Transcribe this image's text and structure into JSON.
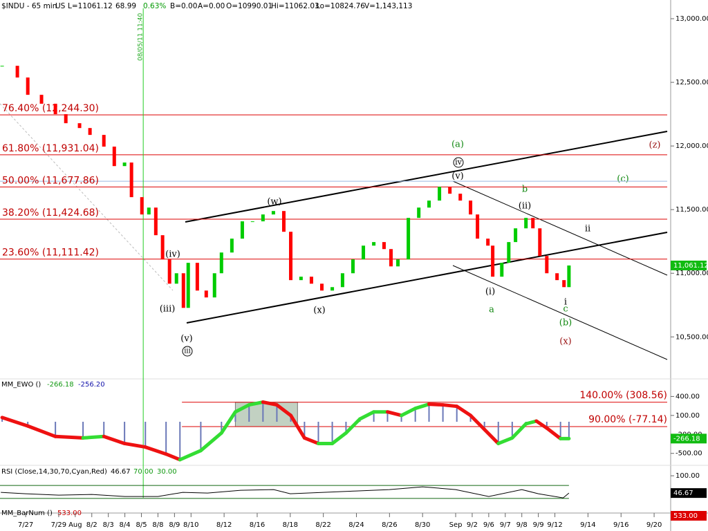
{
  "header": {
    "symbol": "$INDU - 65 min",
    "market": "US",
    "last": "L=11061.12",
    "change": "68.99",
    "pct": "0.63%",
    "bid": "B=0.00",
    "ask": "A=0.00",
    "open": "O=10990.01",
    "high": "Hi=11062.03",
    "low": "Lo=10824.76",
    "volume": "V=1,143,113"
  },
  "chart_data": [
    {
      "type": "candlestick",
      "x": [
        -1.42,
        -0.5,
        0.13,
        0.96,
        1.8,
        2.43,
        3.26,
        3.89,
        4.73,
        5.36,
        5.98,
        6.4,
        7.03,
        7.45,
        7.87,
        8.28,
        8.7,
        9.12,
        9.54,
        9.83,
        10.38,
        10.92,
        11.42,
        11.84,
        12.47,
        13.1,
        13.72,
        14.35,
        14.98,
        15.61,
        16.03,
        16.65,
        17.28,
        17.91,
        18.54,
        19.16,
        19.79,
        20.42,
        21.05,
        21.67,
        22.09,
        22.51,
        23.14,
        23.77,
        24.39,
        25.02,
        25.65,
        26.28,
        26.9,
        27.32,
        27.95,
        28.24,
        28.79,
        29.21,
        29.62,
        30.25,
        30.67,
        31.09,
        31.51,
        32.13,
        32.55,
        32.85
      ],
      "values": [
        12630,
        12538,
        12402,
        12332,
        12250,
        12179,
        12141,
        12087,
        11995,
        11842,
        11870,
        11598,
        11462,
        11516,
        11299,
        11109,
        10918,
        11000,
        10728,
        11082,
        10864,
        10810,
        11000,
        11163,
        11272,
        11408,
        11408,
        11462,
        11489,
        11326,
        10946,
        10973,
        10918,
        10864,
        10891,
        11000,
        11109,
        11217,
        11245,
        11190,
        11054,
        11109,
        11435,
        11516,
        11571,
        11679,
        11625,
        11571,
        11462,
        11272,
        11217,
        10973,
        11082,
        11245,
        11353,
        11435,
        11353,
        11136,
        11000,
        10946,
        10891,
        11061
      ],
      "up_color": "#00cc00",
      "down_color": "#ff0000",
      "level_color": "#dd0000",
      "xlim": [
        -1.55,
        39.0
      ],
      "xticks": [
        {
          "value": 0,
          "label": "7/27"
        },
        {
          "value": 2,
          "label": "7/29"
        },
        {
          "value": 3,
          "label": "Aug"
        },
        {
          "value": 4,
          "label": "8/2"
        },
        {
          "value": 5,
          "label": "8/3"
        },
        {
          "value": 6,
          "label": "8/4"
        },
        {
          "value": 7,
          "label": "8/5"
        },
        {
          "value": 8,
          "label": "8/8"
        },
        {
          "value": 9,
          "label": "8/9"
        },
        {
          "value": 10,
          "label": "8/10"
        },
        {
          "value": 12,
          "label": "8/12"
        },
        {
          "value": 14,
          "label": "8/16"
        },
        {
          "value": 16,
          "label": "8/18"
        },
        {
          "value": 18,
          "label": "8/22"
        },
        {
          "value": 20,
          "label": "8/24"
        },
        {
          "value": 22,
          "label": "8/26"
        },
        {
          "value": 24,
          "label": "8/30"
        },
        {
          "value": 26,
          "label": "Sep"
        },
        {
          "value": 27,
          "label": "9/2"
        },
        {
          "value": 28,
          "label": "9/6"
        },
        {
          "value": 29,
          "label": "9/7"
        },
        {
          "value": 30,
          "label": "9/8"
        },
        {
          "value": 31,
          "label": "9/9"
        },
        {
          "value": 32,
          "label": "9/12"
        },
        {
          "value": 34,
          "label": "9/14"
        },
        {
          "value": 36,
          "label": "9/16"
        },
        {
          "value": 38,
          "label": "9/20"
        }
      ],
      "ylim": [
        10170,
        13147
      ],
      "yticks": [
        {
          "value": 10500,
          "label": "10,500.00"
        },
        {
          "value": 11000,
          "label": "11,000.00"
        },
        {
          "value": 11500,
          "label": "11,500.00"
        },
        {
          "value": 12000,
          "label": "12,000.00"
        },
        {
          "value": 12500,
          "label": "12,500.00"
        },
        {
          "value": 13000,
          "label": "13,000.00"
        }
      ],
      "levels": [
        {
          "value": 12244.3,
          "label": "76.40% (12,244.30)"
        },
        {
          "value": 11931.04,
          "label": "61.80% (11,931.04)"
        },
        {
          "value": 11677.86,
          "label": "50.00% (11,677.86)"
        },
        {
          "value": 11424.68,
          "label": "38.20% (11,424.68)"
        },
        {
          "value": 11111.42,
          "label": "23.60% (11,111.42)"
        }
      ],
      "ref_level": 11723,
      "vline": {
        "x": 7.11,
        "label": "08/05/11 11:40"
      },
      "last": {
        "value": 11061.12,
        "label": "11,061.12"
      }
    },
    {
      "type": "oscillator",
      "title": "MM_EWO ()",
      "signal_label": "-256.20",
      "x": [
        -1.42,
        0.13,
        1.8,
        3.47,
        4.73,
        5.98,
        7.24,
        8.49,
        9.33,
        10.59,
        11.84,
        12.68,
        13.51,
        14.35,
        15.19,
        16.03,
        16.86,
        17.7,
        18.54,
        19.37,
        20.21,
        21.05,
        21.88,
        22.72,
        23.56,
        24.39,
        25.23,
        26.07,
        26.9,
        27.74,
        28.58,
        29.42,
        30.25,
        30.88,
        31.51,
        32.34,
        32.85
      ],
      "values": [
        67,
        -67,
        -233,
        -256,
        -233,
        -344,
        -400,
        -511,
        -600,
        -456,
        -178,
        156,
        267,
        311,
        267,
        100,
        -256,
        -344,
        -344,
        -178,
        44,
        156,
        156,
        100,
        211,
        278,
        267,
        244,
        100,
        -122,
        -344,
        -256,
        -33,
        11,
        -100,
        -267,
        -266.18
      ],
      "up_color": "#33dd33",
      "down_color": "#ee1111",
      "hist_color": "#6a78b8",
      "ylim": [
        -678,
        656
      ],
      "yticks": [
        {
          "value": 400,
          "label": "400.00"
        },
        {
          "value": 100,
          "label": "100.00"
        },
        {
          "value": -200,
          "label": "-200.00"
        },
        {
          "value": -500,
          "label": "-500.00"
        }
      ],
      "levels": [
        {
          "value": 308.56,
          "label": "140.00% (308.56)"
        },
        {
          "value": -77.14,
          "label": "90.00% (-77.14)"
        }
      ],
      "levels_from": 9.45,
      "box_x": [
        12.68,
        16.44
      ],
      "last": -266.18
    },
    {
      "type": "line",
      "title": "RSI (Close,14,30,70,Cyan,Red)",
      "x": [
        -1.5,
        0,
        2,
        4,
        6,
        8,
        9.5,
        11,
        13,
        15,
        16,
        18,
        20,
        22,
        24,
        26,
        28,
        30,
        31,
        32.5,
        32.85
      ],
      "values": [
        48.8,
        44.6,
        40.3,
        42.4,
        36,
        36,
        48.8,
        46.7,
        55.2,
        57.4,
        44.6,
        48.8,
        53.1,
        57.4,
        65.9,
        57.4,
        36,
        57.4,
        44.6,
        31.8,
        46.67
      ],
      "color": "#000000",
      "level_color": "#116611",
      "ylim": [
        -15,
        128
      ],
      "yticks": [
        {
          "value": 100,
          "label": "100.00"
        }
      ],
      "levels": [
        {
          "value": 70,
          "label": "70.00"
        },
        {
          "value": 30,
          "label": "30.00"
        }
      ],
      "last": 46.67
    }
  ],
  "barnum": {
    "title": "MM_BarNum ()",
    "value": "533.00"
  },
  "waves": [
    "(a)",
    "iv",
    "(v)",
    "b",
    "(c)",
    "(z)",
    "(w)",
    "(ii)",
    "ii",
    "(iv)",
    "(iii)",
    "(x)",
    "(i)",
    "a",
    "i",
    "c",
    "(b)",
    "(x)",
    "(v)",
    "iii"
  ]
}
